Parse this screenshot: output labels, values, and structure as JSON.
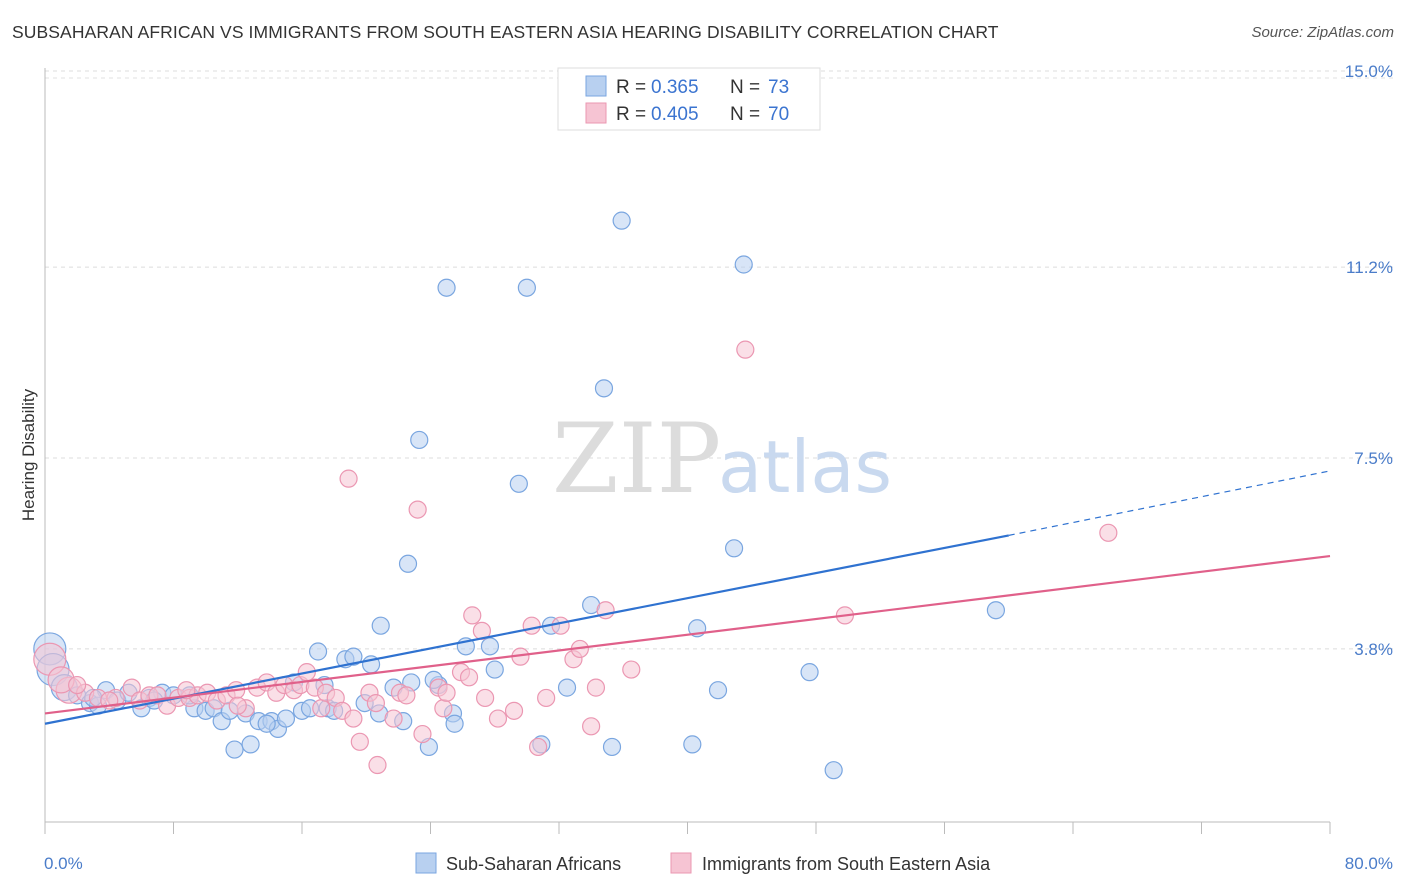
{
  "title": "SUBSAHARAN AFRICAN VS IMMIGRANTS FROM SOUTH EASTERN ASIA HEARING DISABILITY CORRELATION CHART",
  "source": "Source: ZipAtlas.com",
  "chart_data": {
    "type": "scatter",
    "title": "SUBSAHARAN AFRICAN VS IMMIGRANTS FROM SOUTH EASTERN ASIA HEARING DISABILITY CORRELATION CHART",
    "xlabel": "",
    "ylabel": "Hearing Disability",
    "xlim": [
      0,
      80
    ],
    "ylim": [
      0,
      15.5
    ],
    "x_tick_labels": [
      "0.0%",
      "80.0%"
    ],
    "y_ticks": [
      3.8,
      7.5,
      11.2,
      15.0
    ],
    "y_tick_labels": [
      "3.8%",
      "7.5%",
      "11.2%",
      "15.0%"
    ],
    "grid": "horizontal dashed",
    "legend_placement": "top-center",
    "watermark": {
      "zip": "ZIP",
      "atlas": "atlas"
    },
    "legend": [
      {
        "r_label": "R =",
        "r_value": "0.365",
        "n_label": "N =",
        "n_value": "73"
      },
      {
        "r_label": "R =",
        "r_value": "0.405",
        "n_label": "N =",
        "n_value": "70"
      }
    ],
    "series": [
      {
        "name": "Sub-Saharan Africans",
        "color": "#7aa6e0",
        "fill": "#b8d0f0",
        "line_color": "#2f72d0",
        "trend": {
          "x0": 0,
          "y0": 2.35,
          "x1": 60,
          "y1": 6.0,
          "dash_to_x": 80,
          "dash_to_y": 7.25
        },
        "points": [
          [
            0.3,
            3.8
          ],
          [
            0.5,
            3.4
          ],
          [
            1.2,
            3.05
          ],
          [
            2.0,
            2.9
          ],
          [
            2.8,
            2.75
          ],
          [
            3.3,
            2.7
          ],
          [
            3.8,
            3.0
          ],
          [
            4.5,
            2.8
          ],
          [
            5.2,
            2.95
          ],
          [
            6.0,
            2.65
          ],
          [
            6.5,
            2.85
          ],
          [
            7.3,
            2.95
          ],
          [
            8.0,
            2.9
          ],
          [
            9.3,
            2.65
          ],
          [
            10.0,
            2.6
          ],
          [
            10.5,
            2.65
          ],
          [
            11.0,
            2.4
          ],
          [
            11.5,
            2.6
          ],
          [
            11.8,
            1.85
          ],
          [
            12.5,
            2.55
          ],
          [
            12.8,
            1.95
          ],
          [
            13.3,
            2.4
          ],
          [
            14.1,
            2.4
          ],
          [
            14.5,
            2.25
          ],
          [
            15.0,
            2.45
          ],
          [
            15.5,
            3.15
          ],
          [
            16.0,
            2.6
          ],
          [
            16.5,
            2.65
          ],
          [
            17.0,
            3.75
          ],
          [
            17.6,
            2.65
          ],
          [
            18.0,
            2.6
          ],
          [
            18.7,
            3.6
          ],
          [
            19.2,
            3.65
          ],
          [
            19.9,
            2.75
          ],
          [
            20.3,
            3.5
          ],
          [
            20.8,
            2.55
          ],
          [
            20.9,
            4.25
          ],
          [
            21.7,
            3.05
          ],
          [
            22.3,
            2.4
          ],
          [
            22.6,
            5.45
          ],
          [
            22.8,
            3.15
          ],
          [
            23.3,
            7.85
          ],
          [
            23.9,
            1.9
          ],
          [
            24.5,
            3.1
          ],
          [
            25.0,
            10.8
          ],
          [
            25.4,
            2.55
          ],
          [
            25.5,
            2.35
          ],
          [
            26.2,
            3.85
          ],
          [
            27.7,
            3.85
          ],
          [
            28.0,
            3.4
          ],
          [
            29.5,
            7.0
          ],
          [
            30.0,
            10.8
          ],
          [
            30.9,
            1.95
          ],
          [
            31.5,
            4.25
          ],
          [
            32.5,
            3.05
          ],
          [
            34.0,
            4.65
          ],
          [
            34.8,
            8.85
          ],
          [
            35.3,
            1.9
          ],
          [
            35.9,
            12.1
          ],
          [
            40.3,
            1.95
          ],
          [
            40.6,
            4.2
          ],
          [
            41.9,
            3.0
          ],
          [
            42.9,
            5.75
          ],
          [
            43.5,
            11.25
          ],
          [
            47.6,
            3.35
          ],
          [
            49.1,
            1.45
          ],
          [
            59.2,
            4.55
          ],
          [
            3.0,
            2.85
          ],
          [
            6.8,
            2.8
          ],
          [
            9.0,
            2.9
          ],
          [
            13.8,
            2.35
          ],
          [
            17.4,
            3.1
          ],
          [
            24.2,
            3.2
          ]
        ]
      },
      {
        "name": "Immigrants from South Eastern Asia",
        "color": "#eb97b2",
        "fill": "#f6c4d3",
        "line_color": "#e0608a",
        "trend": {
          "x0": 0,
          "y0": 2.55,
          "x1": 80,
          "y1": 5.6
        },
        "points": [
          [
            0.3,
            3.6
          ],
          [
            1.5,
            3.0
          ],
          [
            2.5,
            2.95
          ],
          [
            3.3,
            2.85
          ],
          [
            4.4,
            2.85
          ],
          [
            5.4,
            3.05
          ],
          [
            5.9,
            2.8
          ],
          [
            6.5,
            2.9
          ],
          [
            7.0,
            2.9
          ],
          [
            7.6,
            2.7
          ],
          [
            8.3,
            2.85
          ],
          [
            9.0,
            2.85
          ],
          [
            9.5,
            2.9
          ],
          [
            10.1,
            2.95
          ],
          [
            10.7,
            2.8
          ],
          [
            11.3,
            2.9
          ],
          [
            11.9,
            3.0
          ],
          [
            12.5,
            2.65
          ],
          [
            13.2,
            3.05
          ],
          [
            13.8,
            3.15
          ],
          [
            14.4,
            2.95
          ],
          [
            14.9,
            3.1
          ],
          [
            15.5,
            3.0
          ],
          [
            15.9,
            3.1
          ],
          [
            16.3,
            3.35
          ],
          [
            16.8,
            3.05
          ],
          [
            17.2,
            2.65
          ],
          [
            17.5,
            2.95
          ],
          [
            18.1,
            2.85
          ],
          [
            18.5,
            2.6
          ],
          [
            18.9,
            7.1
          ],
          [
            19.2,
            2.45
          ],
          [
            19.6,
            2.0
          ],
          [
            20.2,
            2.95
          ],
          [
            20.6,
            2.75
          ],
          [
            20.7,
            1.55
          ],
          [
            21.7,
            2.45
          ],
          [
            22.1,
            2.95
          ],
          [
            22.5,
            2.9
          ],
          [
            23.2,
            6.5
          ],
          [
            23.5,
            2.15
          ],
          [
            24.5,
            3.05
          ],
          [
            24.8,
            2.65
          ],
          [
            25.0,
            2.95
          ],
          [
            25.9,
            3.35
          ],
          [
            26.4,
            3.25
          ],
          [
            26.6,
            4.45
          ],
          [
            27.2,
            4.15
          ],
          [
            27.4,
            2.85
          ],
          [
            28.2,
            2.45
          ],
          [
            29.2,
            2.6
          ],
          [
            29.6,
            3.65
          ],
          [
            30.3,
            4.25
          ],
          [
            30.7,
            1.9
          ],
          [
            31.2,
            2.85
          ],
          [
            32.1,
            4.25
          ],
          [
            32.9,
            3.6
          ],
          [
            33.3,
            3.8
          ],
          [
            34.0,
            2.3
          ],
          [
            34.3,
            3.05
          ],
          [
            34.9,
            4.55
          ],
          [
            36.5,
            3.4
          ],
          [
            43.6,
            9.6
          ],
          [
            49.8,
            4.45
          ],
          [
            66.2,
            6.05
          ],
          [
            1.0,
            3.2
          ],
          [
            2.0,
            3.1
          ],
          [
            4.0,
            2.8
          ],
          [
            8.8,
            3.0
          ],
          [
            12.0,
            2.7
          ]
        ]
      }
    ]
  }
}
